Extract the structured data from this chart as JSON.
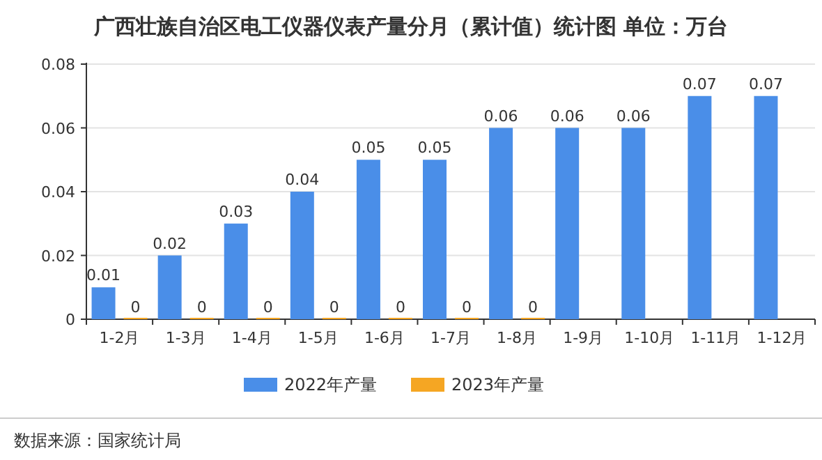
{
  "chart_data": {
    "type": "bar",
    "title": "广西壮族自治区电工仪器仪表产量分月（累计值）统计图 单位：万台",
    "categories": [
      "1-2月",
      "1-3月",
      "1-4月",
      "1-5月",
      "1-6月",
      "1-7月",
      "1-8月",
      "1-9月",
      "1-10月",
      "1-11月",
      "1-12月"
    ],
    "series": [
      {
        "name": "2022年产量",
        "color": "#4a8ee8",
        "values": [
          0.01,
          0.02,
          0.03,
          0.04,
          0.05,
          0.05,
          0.06,
          0.06,
          0.06,
          0.07,
          0.07
        ]
      },
      {
        "name": "2023年产量",
        "color": "#f5a623",
        "values": [
          0,
          0,
          0,
          0,
          0,
          0,
          0,
          null,
          null,
          null,
          null
        ]
      }
    ],
    "ylim": [
      0,
      0.08
    ],
    "yticks": [
      0,
      0.02,
      0.04,
      0.06,
      0.08
    ],
    "grid": "y",
    "legend": "bottom",
    "data_labels": true,
    "annotations": [
      "数据来源：国家统计局"
    ]
  }
}
